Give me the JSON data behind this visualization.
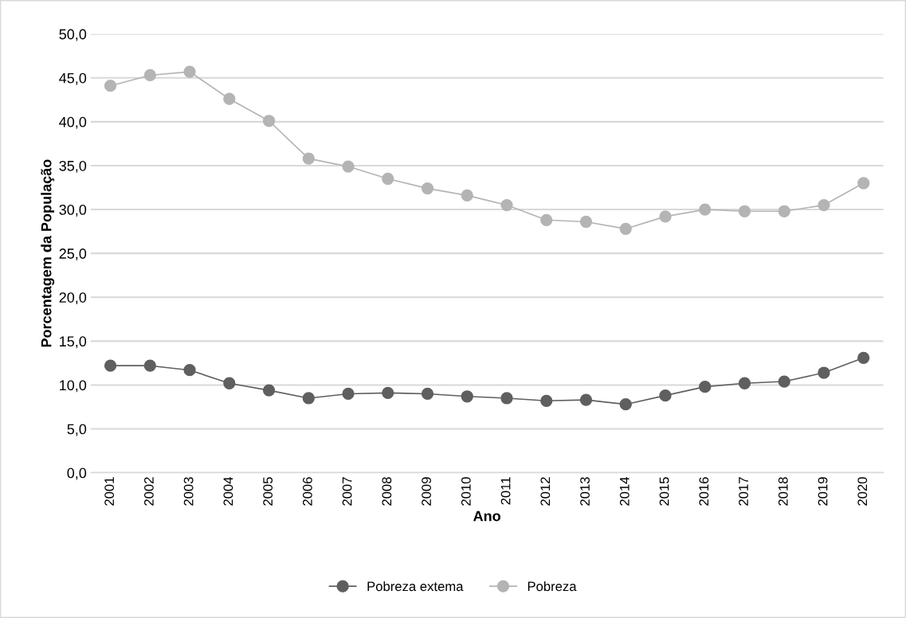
{
  "chart_data": {
    "type": "line",
    "xlabel": "Ano",
    "ylabel": "Porcentagem da População",
    "categories": [
      "2001",
      "2002",
      "2003",
      "2004",
      "2005",
      "2006",
      "2007",
      "2008",
      "2009",
      "2010",
      "2011",
      "2012",
      "2013",
      "2014",
      "2015",
      "2016",
      "2017",
      "2018",
      "2019",
      "2020"
    ],
    "series": [
      {
        "name": "Pobreza extema",
        "color": "#5f5f5f",
        "values": [
          12.2,
          12.2,
          11.7,
          10.2,
          9.4,
          8.5,
          9.0,
          9.1,
          9.0,
          8.7,
          8.5,
          8.2,
          8.3,
          7.8,
          8.8,
          9.8,
          10.2,
          10.4,
          11.4,
          13.1
        ]
      },
      {
        "name": "Pobreza",
        "color": "#b4b4b4",
        "values": [
          44.1,
          45.3,
          45.7,
          42.6,
          40.1,
          35.8,
          34.9,
          33.5,
          32.4,
          31.6,
          30.5,
          28.8,
          28.6,
          27.8,
          29.2,
          30.0,
          29.8,
          29.8,
          30.5,
          33.0
        ]
      }
    ],
    "ylim": [
      0,
      50
    ],
    "yticks": [
      {
        "value": 0,
        "label": "0,0"
      },
      {
        "value": 5,
        "label": "5,0"
      },
      {
        "value": 10,
        "label": "10,0"
      },
      {
        "value": 15,
        "label": "15,0"
      },
      {
        "value": 20,
        "label": "20,0"
      },
      {
        "value": 25,
        "label": "25,0"
      },
      {
        "value": 30,
        "label": "30,0"
      },
      {
        "value": 35,
        "label": "35,0"
      },
      {
        "value": 40,
        "label": "40,0"
      },
      {
        "value": 45,
        "label": "45,0"
      },
      {
        "value": 50,
        "label": "50,0"
      }
    ],
    "grid": "y",
    "legend": "bottom",
    "marker": "circle",
    "line_style": "solid"
  }
}
